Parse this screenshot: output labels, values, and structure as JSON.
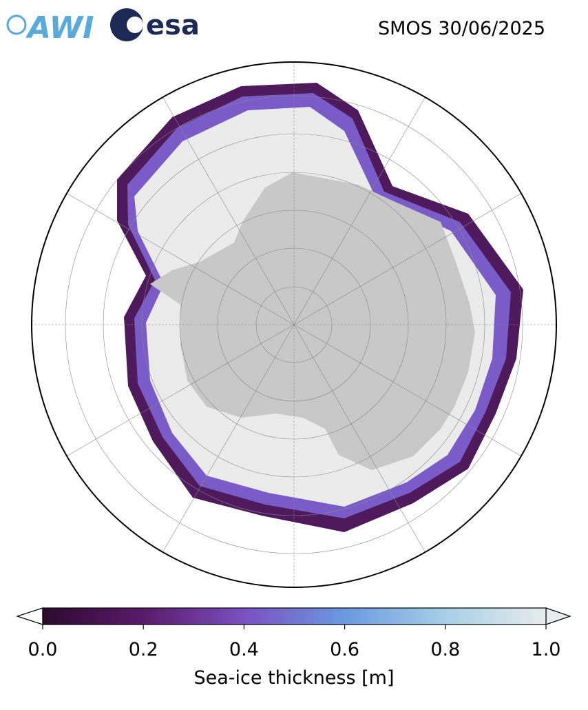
{
  "header": {
    "logos": [
      "AWI",
      "esa"
    ],
    "date_label": "SMOS 30/06/2025"
  },
  "colorbar": {
    "label": "Sea-ice thickness [m]",
    "lim": [
      0,
      1
    ],
    "ticks": [
      {
        "value": 0,
        "label": "0.0"
      },
      0.2,
      0.4,
      0.6,
      0.8,
      {
        "value": 1,
        "label": "1.0"
      }
    ],
    "colors": [
      "#2d0a2e",
      "#5a1a6a",
      "#7a50c0",
      "#6a9ae0",
      "#a6cfe6",
      "#e8ecec"
    ]
  }
}
